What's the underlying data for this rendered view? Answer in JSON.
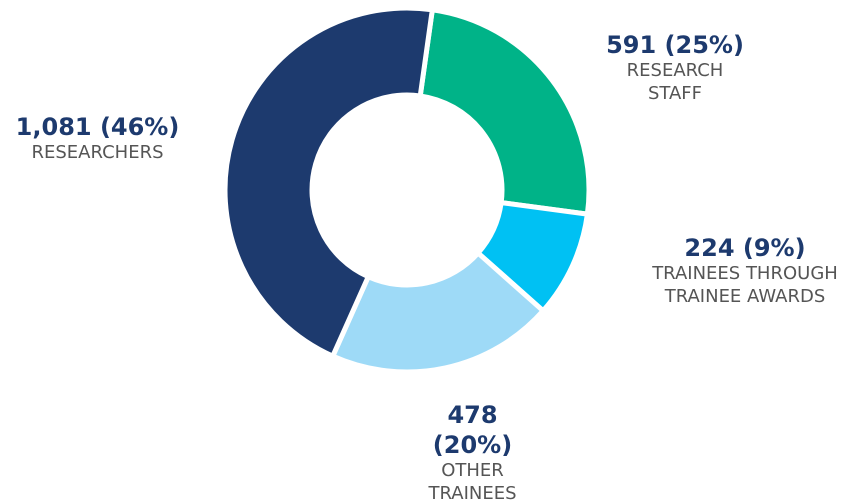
{
  "chart_data": {
    "type": "donut",
    "categories": [
      "RESEARCH STAFF",
      "TRAINEES THROUGH TRAINEE AWARDS",
      "OTHER TRAINEES",
      "RESEARCHERS"
    ],
    "values": [
      591,
      224,
      478,
      1081
    ],
    "value_labels": [
      "591 (25%)",
      "224 (9%)",
      "478 (20%)",
      "1,081 (46%)"
    ],
    "colors": [
      "#00b388",
      "#00c1f3",
      "#9edaf7",
      "#1d3a6e"
    ]
  }
}
